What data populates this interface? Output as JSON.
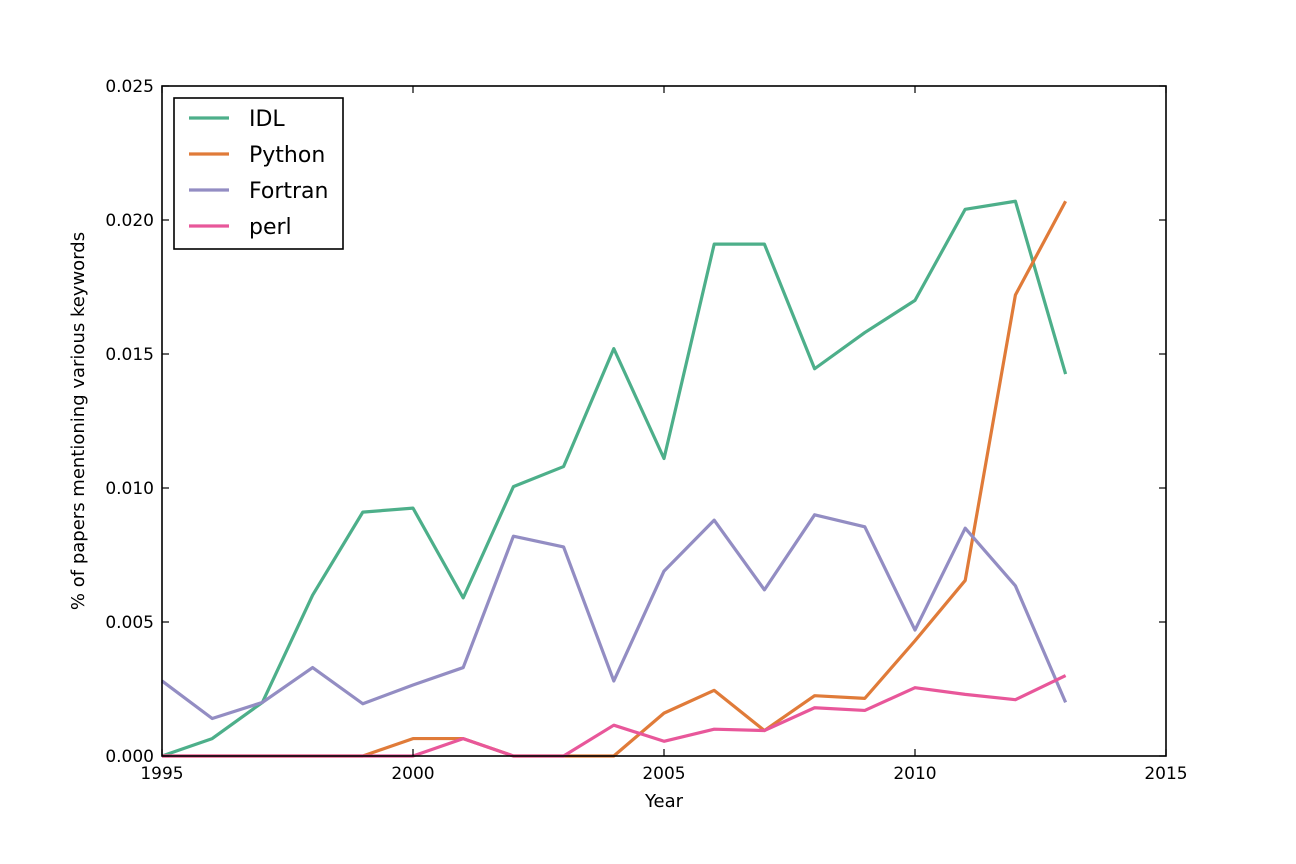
{
  "chart_data": {
    "type": "line",
    "title": "",
    "xlabel": "Year",
    "ylabel": "% of papers mentioning various keywords",
    "xlim": [
      1995,
      2015
    ],
    "ylim": [
      0.0,
      0.025
    ],
    "x_ticks": [
      "1995",
      "2000",
      "2005",
      "2010",
      "2015"
    ],
    "x_tick_values": [
      1995,
      2000,
      2005,
      2010,
      2015
    ],
    "y_ticks": [
      "0.000",
      "0.005",
      "0.010",
      "0.015",
      "0.020",
      "0.025"
    ],
    "y_tick_values": [
      0.0,
      0.005,
      0.01,
      0.015,
      0.02,
      0.025
    ],
    "grid": false,
    "legend_position": "upper-left",
    "x": [
      1995,
      1996,
      1997,
      1998,
      1999,
      2000,
      2001,
      2002,
      2003,
      2004,
      2005,
      2006,
      2007,
      2008,
      2009,
      2010,
      2011,
      2012,
      2013
    ],
    "series": [
      {
        "name": "IDL",
        "color": "#4daf8a",
        "values": [
          0.0,
          0.00065,
          0.002,
          0.006,
          0.0091,
          0.00925,
          0.0059,
          0.01005,
          0.0108,
          0.0152,
          0.0111,
          0.0191,
          0.0191,
          0.01445,
          0.0158,
          0.017,
          0.0204,
          0.0207,
          0.01425
        ]
      },
      {
        "name": "Python",
        "color": "#e07b39",
        "values": [
          0.0,
          0.0,
          0.0,
          0.0,
          0.0,
          0.00065,
          0.00065,
          0.0,
          0.0,
          0.0,
          0.0016,
          0.00245,
          0.00095,
          0.00225,
          0.00215,
          0.0043,
          0.00655,
          0.0172,
          0.0207
        ]
      },
      {
        "name": "Fortran",
        "color": "#938dc3",
        "values": [
          0.0028,
          0.0014,
          0.002,
          0.0033,
          0.00195,
          0.00265,
          0.0033,
          0.0082,
          0.0078,
          0.0028,
          0.0069,
          0.0088,
          0.0062,
          0.009,
          0.00855,
          0.0047,
          0.0085,
          0.00635,
          0.002
        ]
      },
      {
        "name": "perl",
        "color": "#e8579a",
        "values": [
          0.0,
          0.0,
          0.0,
          0.0,
          0.0,
          0.0,
          0.00065,
          0.0,
          0.0,
          0.00115,
          0.00055,
          0.001,
          0.00095,
          0.0018,
          0.0017,
          0.00255,
          0.0023,
          0.0021,
          0.003
        ]
      }
    ]
  }
}
